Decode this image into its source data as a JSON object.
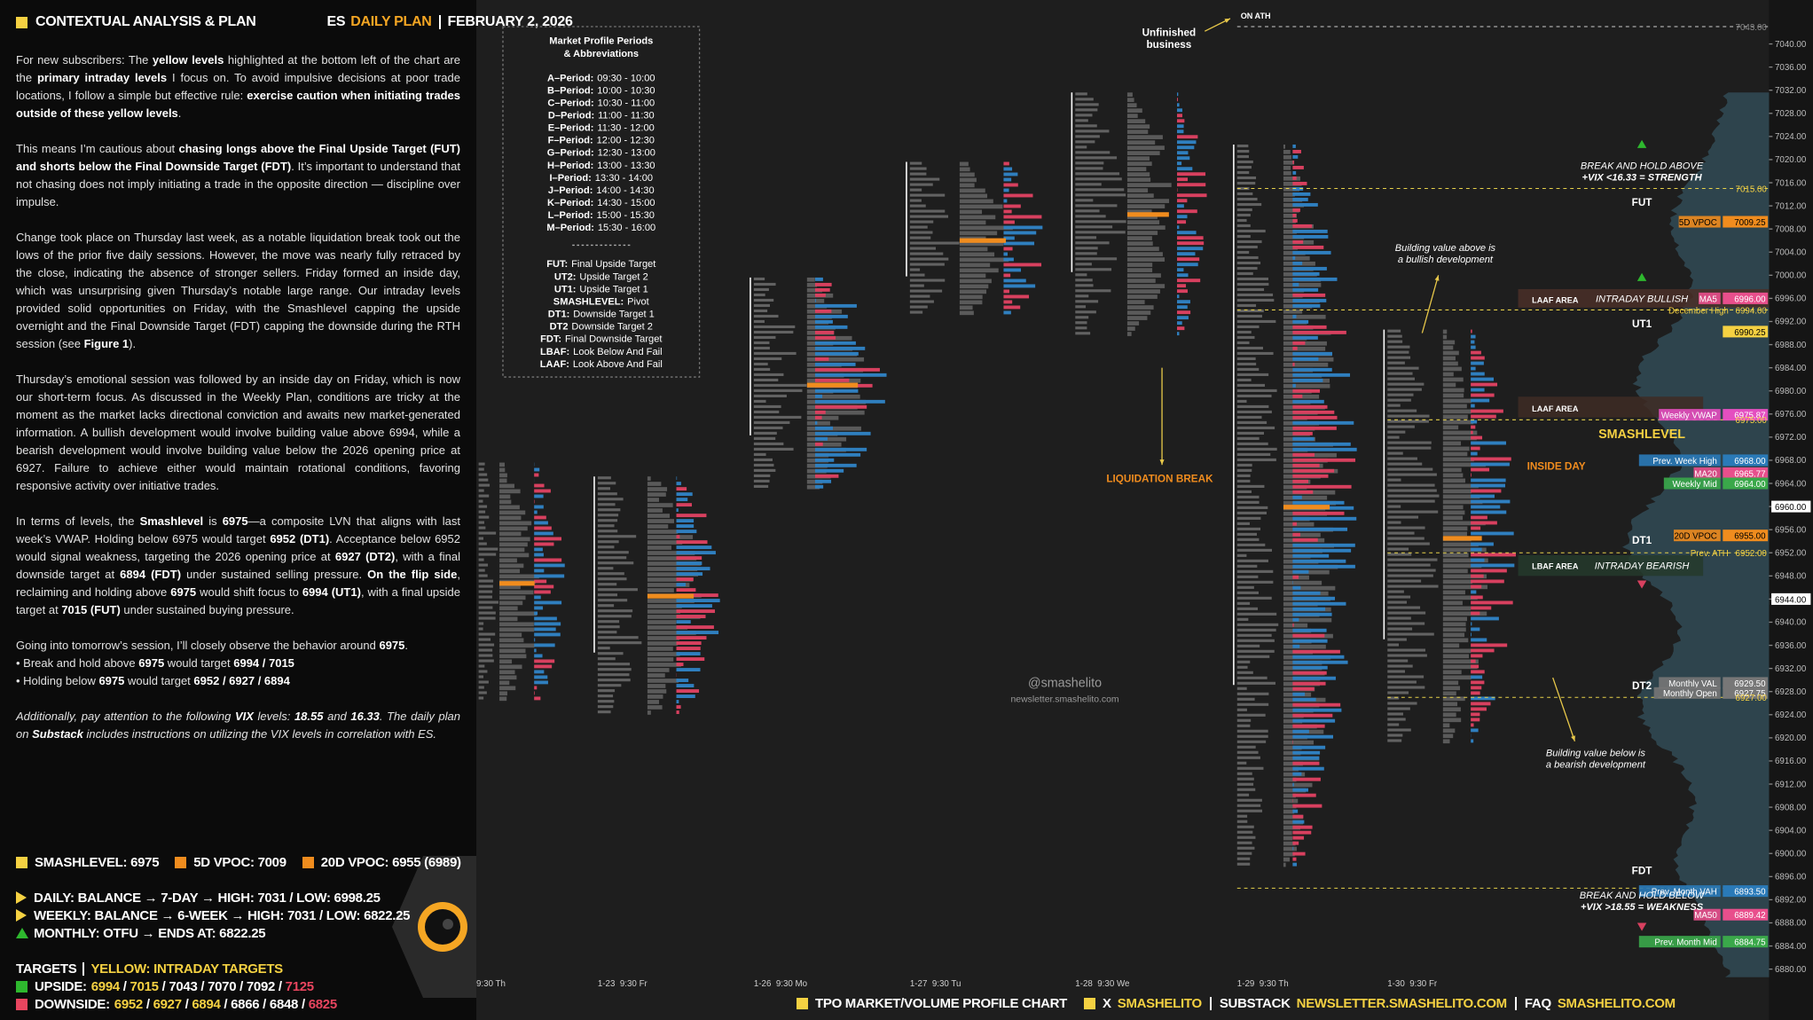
{
  "header": {
    "title": "CONTEXTUAL ANALYSIS & PLAN",
    "market": "ES",
    "plan": "DAILY PLAN",
    "date": "FEBRUARY 2, 2026"
  },
  "paragraphs": [
    {
      "lines": [
        [
          {
            "text": "For new subscribers: The "
          },
          {
            "text": "yellow levels",
            "bold": true
          },
          {
            "text": " highlighted at the bottom left of the chart are the "
          },
          {
            "text": "primary intraday levels",
            "bold": true
          },
          {
            "text": " I focus on. To avoid impulsive decisions at poor trade locations, I follow a simple but effective rule: "
          },
          {
            "text": "exercise caution when initiating trades outside of these yellow levels",
            "bold": true
          },
          {
            "text": "."
          }
        ]
      ]
    },
    {
      "lines": [
        [
          {
            "text": "This means I’m cautious about "
          },
          {
            "text": "chasing longs above the Final Upside Target (FUT) and shorts below the Final Downside Target (FDT)",
            "bold": true
          },
          {
            "text": ". It’s important to understand that not chasing does not imply initiating a trade in the opposite direction — discipline over impulse."
          }
        ]
      ]
    },
    {
      "lines": [
        [
          {
            "text": "Change took place on Thursday last week, as a notable liquidation break took out the lows of the prior five daily sessions. However, the move was nearly fully retraced by the close, indicating the absence of stronger sellers. Friday formed an inside day, which was unsurprising given Thursday’s notable large range. Our intraday levels provided solid opportunities on Friday, with the Smashlevel capping the upside overnight and the Final Downside Target (FDT) capping the downside during the RTH session (see "
          },
          {
            "text": "Figure 1",
            "bold": true
          },
          {
            "text": ")."
          }
        ]
      ]
    },
    {
      "lines": [
        [
          {
            "text": "Thursday’s emotional session was followed by an inside day on Friday, which is now our short-term focus. As discussed in the Weekly Plan, conditions are tricky at the moment as the market lacks directional conviction and awaits new market-generated information. A bullish development would involve building value above 6994, while a bearish development would involve building value below the 2026 opening price at 6927. Failure to achieve either would maintain rotational conditions, favoring responsive activity over initiative trades."
          }
        ]
      ]
    },
    {
      "lines": [
        [
          {
            "text": "In terms of levels, the "
          },
          {
            "text": "Smashlevel",
            "bold": true
          },
          {
            "text": " is "
          },
          {
            "text": "6975",
            "bold": true
          },
          {
            "text": "—a composite LVN that aligns with last week’s VWAP. Holding below 6975 would target "
          },
          {
            "text": "6952 (DT1)",
            "bold": true
          },
          {
            "text": ". Acceptance below 6952 would signal weakness, targeting the 2026 opening price at "
          },
          {
            "text": "6927 (DT2)",
            "bold": true
          },
          {
            "text": ", with a final downside target at "
          },
          {
            "text": "6894 (FDT)",
            "bold": true
          },
          {
            "text": " under sustained selling pressure. "
          },
          {
            "text": "On the flip side",
            "bold": true
          },
          {
            "text": ", reclaiming and holding above "
          },
          {
            "text": "6975",
            "bold": true
          },
          {
            "text": " would shift focus to "
          },
          {
            "text": "6994 (UT1)",
            "bold": true
          },
          {
            "text": ", with a final upside target at "
          },
          {
            "text": "7015 (FUT)",
            "bold": true
          },
          {
            "text": " under sustained buying pressure."
          }
        ]
      ]
    },
    {
      "lines": [
        [
          {
            "text": "Going into tomorrow’s session, I’ll closely observe the behavior around "
          },
          {
            "text": "6975",
            "bold": true
          },
          {
            "text": "."
          }
        ],
        [
          {
            "text": "• Break and hold above "
          },
          {
            "text": "6975",
            "bold": true
          },
          {
            "text": " would target "
          },
          {
            "text": "6994 / 7015",
            "bold": true
          }
        ],
        [
          {
            "text": "• Holding below "
          },
          {
            "text": "6975",
            "bold": true
          },
          {
            "text": " would target "
          },
          {
            "text": "6952 / 6927 / 6894",
            "bold": true
          }
        ]
      ]
    },
    {
      "italic": true,
      "lines": [
        [
          {
            "text": "Additionally, pay attention to the following "
          },
          {
            "text": "VIX",
            "bold": true
          },
          {
            "text": " levels: "
          },
          {
            "text": "18.55",
            "bold": true
          },
          {
            "text": " and "
          },
          {
            "text": "16.33",
            "bold": true
          },
          {
            "text": ". The daily plan on "
          },
          {
            "text": "Substack",
            "bold": true
          },
          {
            "text": " includes instructions on utilizing the VIX levels in correlation with ES."
          }
        ]
      ]
    }
  ],
  "key_levels": [
    {
      "text": "SMASHLEVEL: 6975",
      "color": "#f5d142"
    },
    {
      "text": "5D VPOC: 7009",
      "color": "#f08c1e"
    },
    {
      "text": "20D VPOC: 6955 (6989)",
      "color": "#f08c1e"
    }
  ],
  "trend": [
    {
      "text": "DAILY: BALANCE → 7-DAY → HIGH: 7031 / LOW: 6998.25",
      "marker": "right",
      "color": "#f5d142"
    },
    {
      "text": "WEEKLY: BALANCE → 6-WEEK → HIGH: 7031 / LOW: 6822.25",
      "marker": "right",
      "color": "#f5d142"
    },
    {
      "text": "MONTHLY: OTFU → ENDS AT: 6822.25",
      "marker": "up",
      "color": "#2eb82e"
    }
  ],
  "targets": {
    "title": "TARGETS",
    "subtitle": "YELLOW: INTRADAY TARGETS",
    "separator": " / ",
    "rows": [
      {
        "label": "UPSIDE:",
        "color": "#2eb82e",
        "values": [
          {
            "text": "6994",
            "color": "#f5d142"
          },
          {
            "text": "7015",
            "color": "#f5d142"
          },
          {
            "text": "7043",
            "color": "#ffffff"
          },
          {
            "text": "7070",
            "color": "#ffffff"
          },
          {
            "text": "7092",
            "color": "#ffffff"
          },
          {
            "text": "7125",
            "color": "#e8455f"
          }
        ]
      },
      {
        "label": "DOWNSIDE:",
        "color": "#e8455f",
        "values": [
          {
            "text": "6952",
            "color": "#f5d142"
          },
          {
            "text": "6927",
            "color": "#f5d142"
          },
          {
            "text": "6894",
            "color": "#f5d142"
          },
          {
            "text": "6866",
            "color": "#ffffff"
          },
          {
            "text": "6848",
            "color": "#ffffff"
          },
          {
            "text": "6825",
            "color": "#e8455f"
          }
        ]
      }
    ]
  },
  "legend_box": {
    "title_lines": [
      "Market Profile Periods",
      "& Abbreviations"
    ],
    "periods": [
      {
        "key": "A–Period:",
        "text": "09:30 - 10:00"
      },
      {
        "key": "B–Period:",
        "text": "10:00 - 10:30"
      },
      {
        "key": "C–Period:",
        "text": "10:30 - 11:00"
      },
      {
        "key": "D–Period:",
        "text": "11:00 - 11:30"
      },
      {
        "key": "E–Period:",
        "text": "11:30 - 12:00"
      },
      {
        "key": "F–Period:",
        "text": "12:00 - 12:30"
      },
      {
        "key": "G–Period:",
        "text": "12:30 - 13:00"
      },
      {
        "key": "H–Period:",
        "text": "13:00 - 13:30"
      },
      {
        "key": "I–Period:",
        "text": "13:30 - 14:00"
      },
      {
        "key": "J–Period:",
        "text": "14:00 - 14:30"
      },
      {
        "key": "K–Period:",
        "text": "14:30 - 15:00"
      },
      {
        "key": "L–Period:",
        "text": "15:00 - 15:30"
      },
      {
        "key": "M–Period:",
        "text": "15:30 - 16:00"
      }
    ],
    "abbreviations": [
      {
        "key": "FUT:",
        "text": "Final Upside Target"
      },
      {
        "key": "UT2:",
        "text": "Upside Target 2"
      },
      {
        "key": "UT1:",
        "text": "Upside Target 1"
      },
      {
        "key": "SMASHLEVEL:",
        "text": "Pivot"
      },
      {
        "key": "DT1:",
        "text": "Downside Target 1"
      },
      {
        "key": "DT2",
        "text": "Downside Target 2"
      },
      {
        "key": "FDT:",
        "text": "Final Downside Target"
      },
      {
        "key": "LBAF:",
        "text": "Look Below And Fail"
      },
      {
        "key": "LAAF:",
        "text": "Look Above And Fail"
      }
    ]
  },
  "price_axis": [
    "7040.00",
    "7036.00",
    "7032.00",
    "7028.00",
    "7024.00",
    "7020.00",
    "7016.00",
    "7012.00",
    "7008.00",
    "7004.00",
    "7000.00",
    "6996.00",
    "6992.00",
    "6988.00",
    "6984.00",
    "6980.00",
    "6976.00",
    "6972.00",
    "6968.00",
    "6964.00",
    "6960.00",
    "6956.00",
    "6952.00",
    "6948.00",
    "6944.00",
    "6940.00",
    "6936.00",
    "6932.00",
    "6928.00",
    "6924.00",
    "6920.00",
    "6916.00",
    "6912.00",
    "6908.00",
    "6904.00",
    "6900.00",
    "6896.00",
    "6892.00",
    "6888.00",
    "6884.00",
    "6880.00"
  ],
  "level_lines": [
    {
      "value": 7043,
      "color": "#cfcfcf"
    },
    {
      "value": 7015,
      "color": "#e8d24a"
    },
    {
      "value": 6994,
      "color": "#e8d24a"
    },
    {
      "value": 6975,
      "color": "#e8d24a"
    },
    {
      "value": 6952,
      "color": "#e8d24a"
    },
    {
      "value": 6927,
      "color": "#e8d24a"
    },
    {
      "value": 6894,
      "color": "#e8d24a"
    }
  ],
  "tags": [
    {
      "value": "7043.00",
      "style": "text",
      "color": "#8a8a8a"
    },
    {
      "value": "7015.00",
      "style": "text",
      "color": "#f5d142"
    },
    {
      "label": "5D VPOC",
      "value": "7009.25",
      "style": "box",
      "color": "#f08c1e",
      "text_color": "#000000"
    },
    {
      "label": "MA5",
      "value": "6996.00",
      "style": "box",
      "color": "#e84f8c",
      "text_color": "#ffffff"
    },
    {
      "label": "December High",
      "value": "6994.00",
      "style": "text",
      "color": "#f5d142"
    },
    {
      "value": "6990.25",
      "style": "box",
      "color": "#f5d142",
      "text_color": "#000000"
    },
    {
      "label": "Weekly VWAP",
      "value": "6975.87",
      "style": "box",
      "color": "#e44fc0",
      "text_color": "#ffffff"
    },
    {
      "value": "6975.00",
      "style": "text",
      "color": "#f5d142"
    },
    {
      "label": "Prev. Week High",
      "value": "6968.00",
      "style": "box",
      "color": "#2a7ab8",
      "text_color": "#ffffff"
    },
    {
      "label": "MA20",
      "value": "6965.77",
      "style": "box",
      "color": "#e84f8c",
      "text_color": "#ffffff"
    },
    {
      "label": "Weekly Mid",
      "value": "6964.00",
      "style": "box",
      "color": "#3aa84a",
      "text_color": "#ffffff"
    },
    {
      "value": "6960.00",
      "style": "axis",
      "color": "#ffffff",
      "text_color": "#000000"
    },
    {
      "label": "20D VPOC",
      "value": "6955.00",
      "style": "box",
      "color": "#f08c1e",
      "text_color": "#000000"
    },
    {
      "label": "Prev. ATH",
      "value": "6952.00",
      "style": "text",
      "color": "#f5d142"
    },
    {
      "value": "6944.00",
      "style": "axis",
      "color": "#ffffff",
      "text_color": "#000000"
    },
    {
      "label": "Monthly VAL",
      "value": "6929.50",
      "style": "box",
      "color": "#777777",
      "text_color": "#ffffff"
    },
    {
      "label": "Monthly Open",
      "value": "6927.75",
      "style": "box",
      "color": "#777777",
      "text_color": "#ffffff"
    },
    {
      "value": "6927.00",
      "style": "text",
      "color": "#f5d142"
    },
    {
      "value": "6894.00",
      "style": "text",
      "color": "#f5d142"
    },
    {
      "label": "Prev. Month VAH",
      "value": "6893.50",
      "style": "box",
      "color": "#2a7ab8",
      "text_color": "#ffffff"
    },
    {
      "label": "MA50",
      "value": "6889.42",
      "style": "box",
      "color": "#e84f8c",
      "text_color": "#ffffff"
    },
    {
      "label": "Prev. Month Mid",
      "value": "6884.75",
      "style": "box",
      "color": "#3aa84a",
      "text_color": "#ffffff"
    }
  ],
  "annotations": [
    {
      "lines": [
        "Unfinished",
        "business"
      ],
      "color": "#ffffff",
      "bold": true
    },
    {
      "lines": [
        "ON ATH"
      ],
      "color": "#ffffff",
      "bold": true
    },
    {
      "lines": [
        "LIQUIDATION BREAK"
      ],
      "color": "#f08c1e",
      "bold": true
    },
    {
      "lines": [
        "Building value above is",
        "a bullish development"
      ],
      "color": "#ffffff",
      "italic": true
    },
    {
      "lines": [
        "Building value below is",
        "a bearish development"
      ],
      "color": "#ffffff",
      "italic": true
    },
    {
      "lines": [
        "BREAK AND HOLD ABOVE",
        "+VIX <16.33 = STRENGTH"
      ],
      "color": "#ffffff",
      "italic": true
    },
    {
      "lines": [
        "BREAK AND HOLD BELOW",
        "+VIX >18.55 = WEAKNESS"
      ],
      "color": "#ffffff",
      "italic": true
    },
    {
      "lines": [
        "FUT"
      ],
      "color": "#ffffff",
      "bold": true
    },
    {
      "lines": [
        "UT1"
      ],
      "color": "#ffffff",
      "bold": true
    },
    {
      "lines": [
        "SMASHLEVEL"
      ],
      "color": "#f5d142",
      "bold": true
    },
    {
      "lines": [
        "DT1"
      ],
      "color": "#ffffff",
      "bold": true
    },
    {
      "lines": [
        "DT2"
      ],
      "color": "#ffffff",
      "bold": true
    },
    {
      "lines": [
        "FDT"
      ],
      "color": "#ffffff",
      "bold": true
    },
    {
      "lines": [
        "INSIDE DAY"
      ],
      "color": "#f08c1e",
      "bold": true
    },
    {
      "lines": [
        "LAAF AREA"
      ],
      "color": "#ffffff",
      "bold": true
    },
    {
      "lines": [
        "INTRADAY BULLISH"
      ],
      "color": "#ffffff",
      "italic": true
    },
    {
      "lines": [
        "LAAF AREA"
      ],
      "color": "#ffffff",
      "bold": true
    },
    {
      "lines": [
        "LBAF AREA"
      ],
      "color": "#ffffff",
      "bold": true
    },
    {
      "lines": [
        "INTRADAY BEARISH"
      ],
      "color": "#ffffff",
      "italic": true
    },
    {
      "lines": [
        "@smashelito"
      ],
      "color": "#9a9a9a"
    },
    {
      "lines": [
        "newsletter.smashelito.com"
      ],
      "color": "#9a9a9a"
    }
  ],
  "x_labels": [
    "9:30 Th",
    "1-23  9:30 Fr",
    "1-26  9:30 Mo",
    "1-27  9:30 Tu",
    "1-28  9:30 We",
    "1-29  9:30 Th",
    "1-30  9:30 Fr"
  ],
  "footer": [
    {
      "text": "TPO MARKET/VOLUME PROFILE CHART",
      "color": "#ffffff",
      "square": true
    },
    {
      "text": "X",
      "color": "#ffffff",
      "square": true
    },
    {
      "text": "SMASHELITO",
      "color": "#f5d142"
    },
    {
      "text": "SUBSTACK",
      "color": "#ffffff",
      "divider": true
    },
    {
      "text": "NEWSLETTER.SMASHELITO.COM",
      "color": "#f5d142"
    },
    {
      "text": "FAQ",
      "color": "#ffffff",
      "divider": true
    },
    {
      "text": "SMASHELITO.COM",
      "color": "#f5d142"
    }
  ]
}
